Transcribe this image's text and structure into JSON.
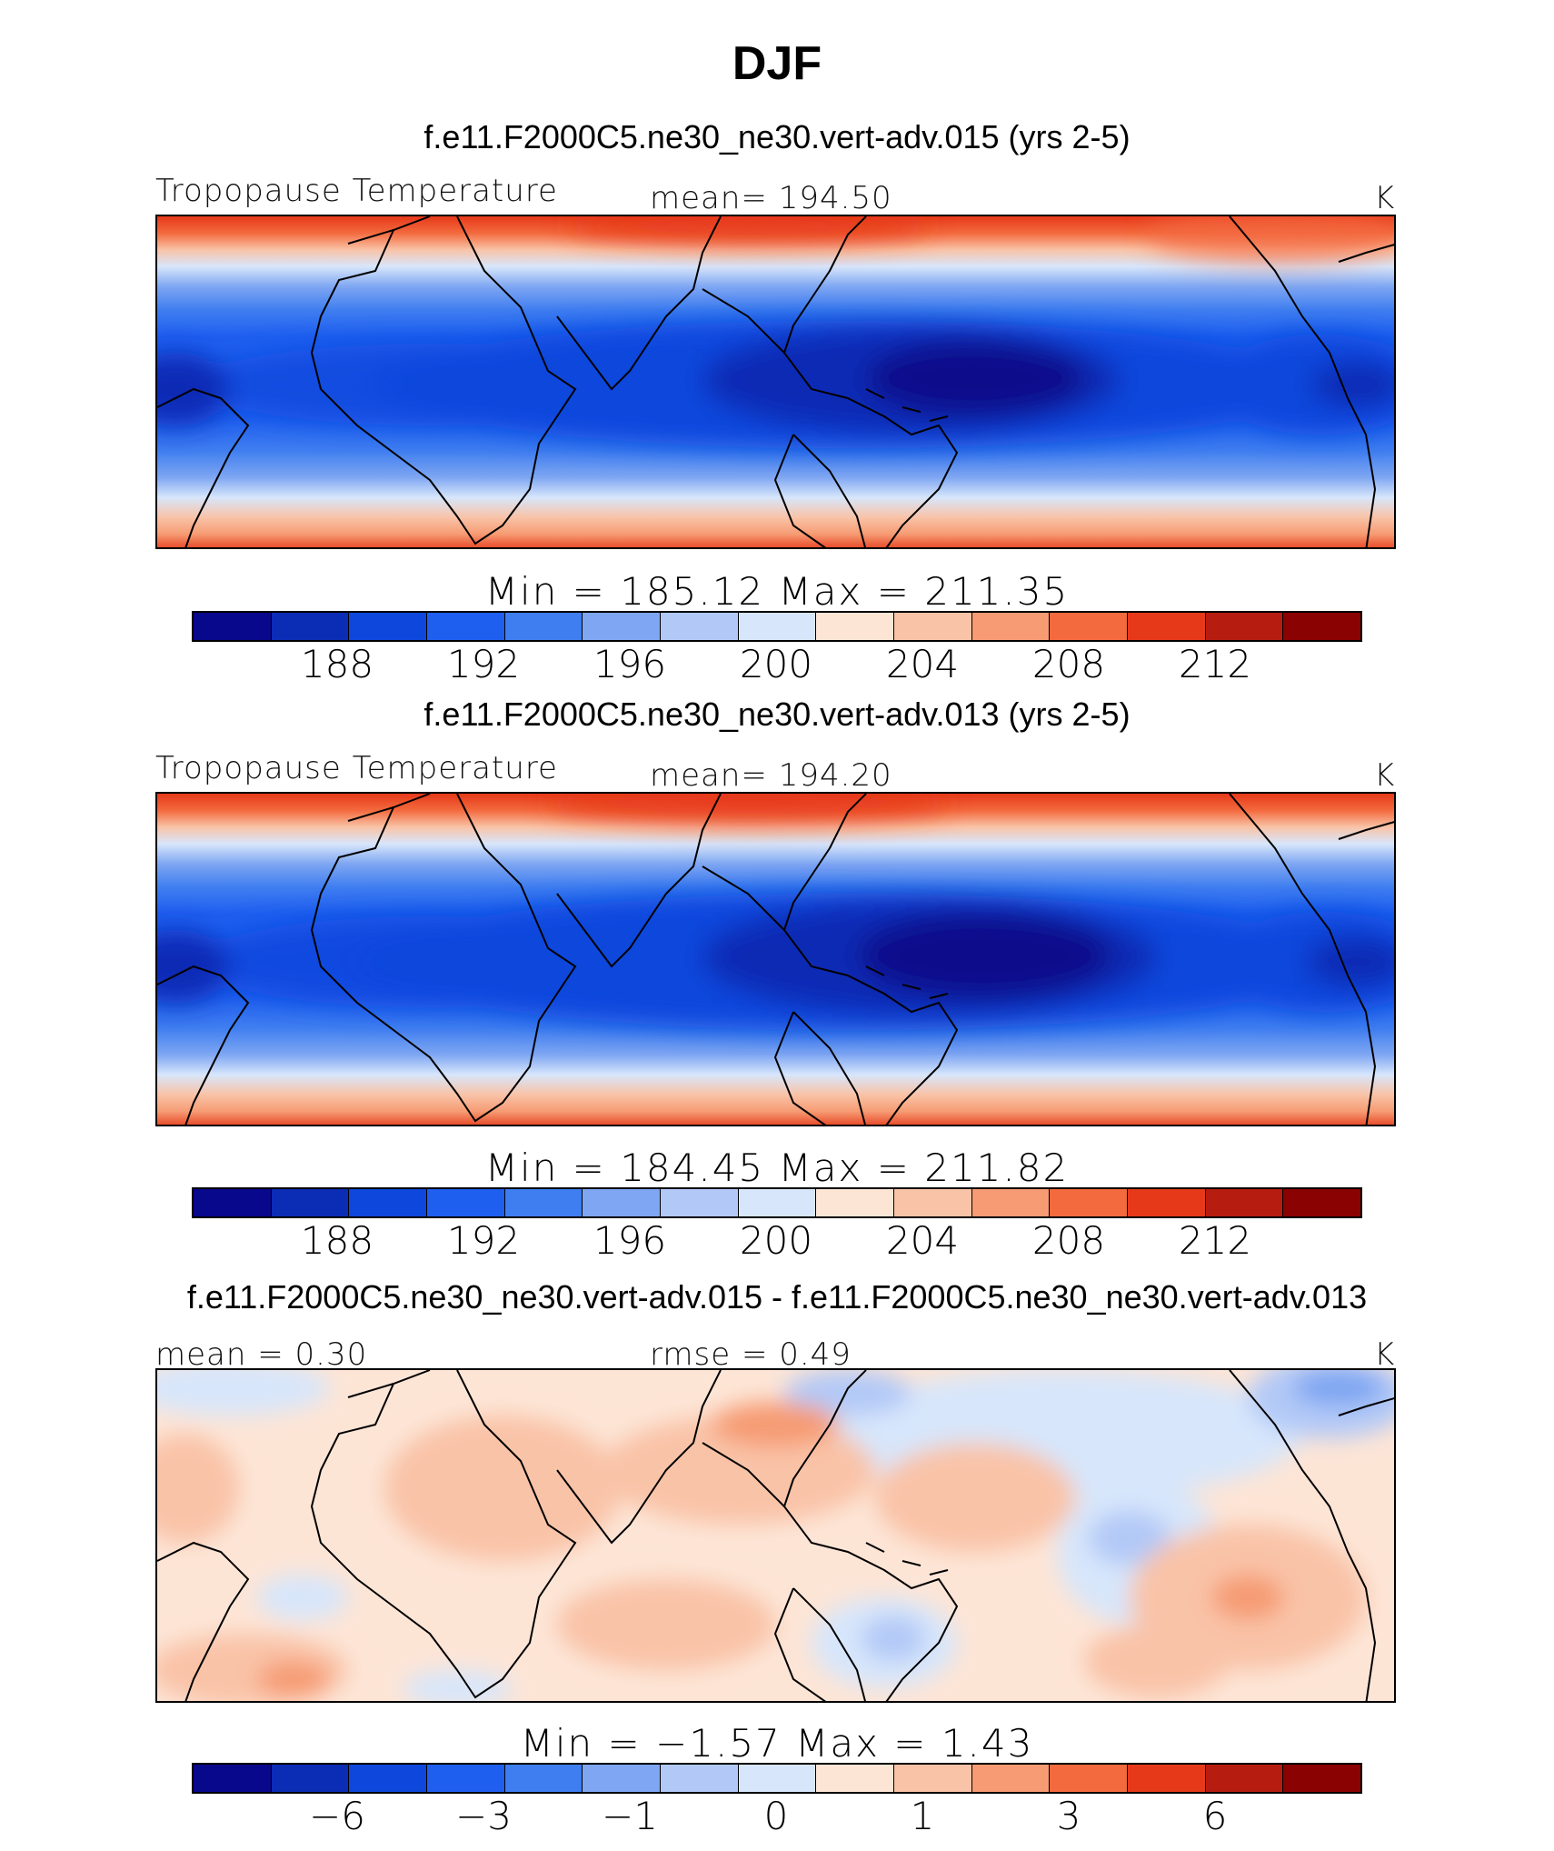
{
  "figure": {
    "title": "DJF"
  },
  "palette": [
    "#08088c",
    "#0b2cb5",
    "#0d47dc",
    "#1f5ff0",
    "#3f7ef0",
    "#7ea6f2",
    "#b2c9f7",
    "#d7e6fb",
    "#fde5d6",
    "#f9c3a7",
    "#f69b73",
    "#f36a3e",
    "#e6391a",
    "#b61d10",
    "#8b0202"
  ],
  "panels": [
    {
      "title": "f.e11.F2000C5.ne30_ne30.vert-adv.015 (yrs 2-5)",
      "left_label": "Tropopause Temperature",
      "center_label": "mean=  194.50",
      "units": "K",
      "minmax": "Min  =  185.12  Max  =  211.35",
      "colorbar_ticks": [
        "188",
        "192",
        "196",
        "200",
        "204",
        "208",
        "212"
      ]
    },
    {
      "title": "f.e11.F2000C5.ne30_ne30.vert-adv.013 (yrs 2-5)",
      "left_label": "Tropopause Temperature",
      "center_label": "mean=  194.20",
      "units": "K",
      "minmax": "Min  =  184.45  Max  =  211.82",
      "colorbar_ticks": [
        "188",
        "192",
        "196",
        "200",
        "204",
        "208",
        "212"
      ]
    },
    {
      "title": "f.e11.F2000C5.ne30_ne30.vert-adv.015 - f.e11.F2000C5.ne30_ne30.vert-adv.013",
      "left_label": "mean =    0.30",
      "center_label": "rmse =    0.49",
      "units": "K",
      "minmax": "Min  =   −1.57  Max  =    1.43",
      "colorbar_ticks": [
        "−6",
        "−3",
        "−1",
        "0",
        "1",
        "3",
        "6"
      ]
    }
  ],
  "chart_data": [
    {
      "type": "heatmap",
      "title": "f.e11.F2000C5.ne30_ne30.vert-adv.015 (yrs 2-5)",
      "variable": "Tropopause Temperature",
      "units": "K",
      "season": "DJF",
      "mean": 194.5,
      "min": 185.12,
      "max": 211.35,
      "colorbar_levels": [
        188,
        192,
        196,
        200,
        204,
        208,
        212
      ]
    },
    {
      "type": "heatmap",
      "title": "f.e11.F2000C5.ne30_ne30.vert-adv.013 (yrs 2-5)",
      "variable": "Tropopause Temperature",
      "units": "K",
      "season": "DJF",
      "mean": 194.2,
      "min": 184.45,
      "max": 211.82,
      "colorbar_levels": [
        188,
        192,
        196,
        200,
        204,
        208,
        212
      ]
    },
    {
      "type": "heatmap",
      "title": "f.e11.F2000C5.ne30_ne30.vert-adv.015 - f.e11.F2000C5.ne30_ne30.vert-adv.013",
      "variable": "Tropopause Temperature difference",
      "units": "K",
      "season": "DJF",
      "mean": 0.3,
      "rmse": 0.49,
      "min": -1.57,
      "max": 1.43,
      "colorbar_levels": [
        -6,
        -3,
        -1,
        0,
        1,
        3,
        6
      ]
    }
  ]
}
